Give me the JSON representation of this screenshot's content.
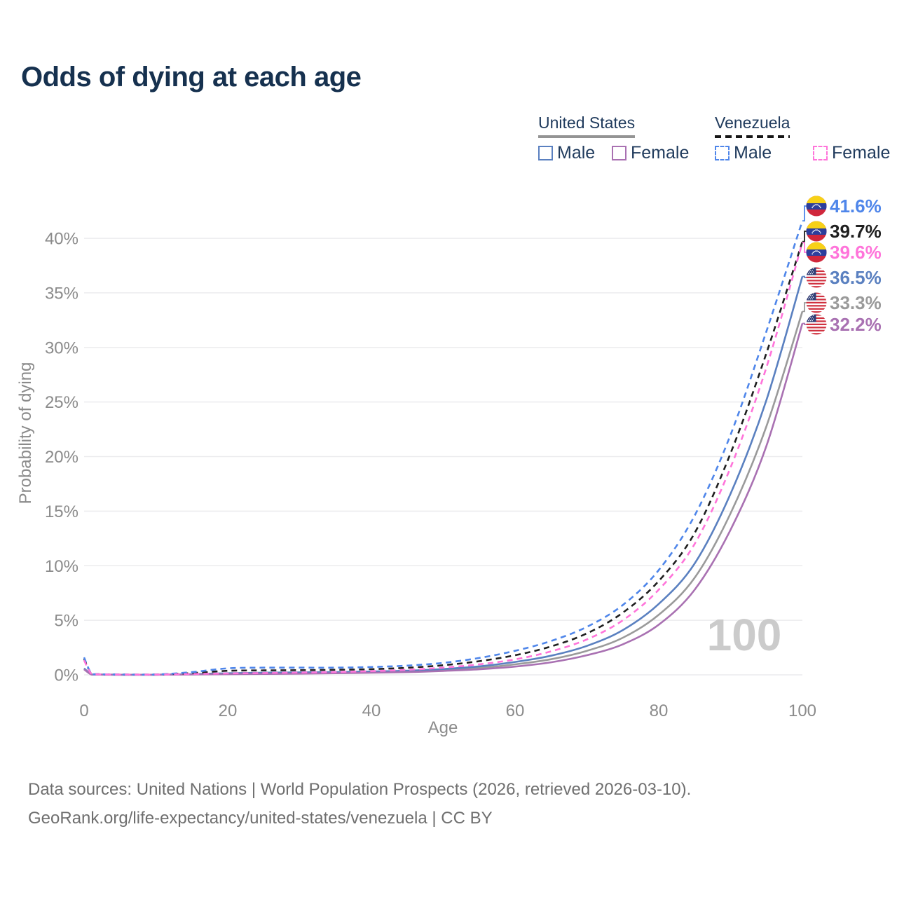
{
  "title": "Odds of dying at each age",
  "legend": {
    "groups": [
      {
        "title": "United States",
        "line_style": "solid",
        "items": [
          {
            "label": "Male",
            "color": "#5a80c0"
          },
          {
            "label": "Female",
            "color": "#a971b2"
          }
        ]
      },
      {
        "title": "Venezuela",
        "line_style": "dashed",
        "items": [
          {
            "label": "Male",
            "color": "#4f86ea"
          },
          {
            "label": "Female",
            "color": "#ff74da"
          }
        ]
      }
    ]
  },
  "chart_data": {
    "type": "line",
    "title": "Odds of dying at each age",
    "xlabel": "Age",
    "ylabel": "Probability of dying",
    "xlim": [
      0,
      100
    ],
    "ylim": [
      0,
      43
    ],
    "grid": true,
    "legend_position": "top-right",
    "watermark": "100",
    "xticks": [
      "0",
      "20",
      "40",
      "60",
      "80",
      "100"
    ],
    "yticks": [
      "0%",
      "5%",
      "10%",
      "15%",
      "20%",
      "25%",
      "30%",
      "35%",
      "40%"
    ],
    "x": [
      0,
      1,
      2,
      5,
      10,
      15,
      20,
      25,
      30,
      35,
      40,
      45,
      50,
      55,
      60,
      65,
      70,
      75,
      80,
      85,
      90,
      95,
      100
    ],
    "series": [
      {
        "name": "Venezuela Male",
        "country": "Venezuela",
        "sex": "Male",
        "color": "#4f86ea",
        "dashed": true,
        "z": 5,
        "values": [
          1.6,
          0.12,
          0.06,
          0.035,
          0.035,
          0.25,
          0.6,
          0.66,
          0.66,
          0.66,
          0.72,
          0.85,
          1.1,
          1.55,
          2.2,
          3.1,
          4.4,
          6.4,
          9.6,
          14.6,
          22.0,
          31.5,
          41.6
        ]
      },
      {
        "name": "Venezuela Total",
        "country": "Venezuela",
        "sex": "Both",
        "color": "#1f1f1f",
        "dashed": true,
        "z": 4,
        "values": [
          1.47,
          0.11,
          0.055,
          0.03,
          0.03,
          0.16,
          0.37,
          0.41,
          0.43,
          0.46,
          0.52,
          0.65,
          0.88,
          1.25,
          1.8,
          2.6,
          3.8,
          5.7,
          8.6,
          13.0,
          20.3,
          29.5,
          39.7
        ]
      },
      {
        "name": "Venezuela Female",
        "country": "Venezuela",
        "sex": "Female",
        "color": "#ff74da",
        "dashed": true,
        "z": 6,
        "values": [
          1.33,
          0.1,
          0.05,
          0.028,
          0.028,
          0.08,
          0.13,
          0.17,
          0.21,
          0.26,
          0.34,
          0.46,
          0.66,
          0.96,
          1.42,
          2.15,
          3.25,
          5.0,
          7.8,
          12.0,
          19.0,
          28.2,
          39.6
        ]
      },
      {
        "name": "United States Male",
        "country": "United States",
        "sex": "Male",
        "color": "#5a80c0",
        "dashed": false,
        "z": 2,
        "values": [
          0.6,
          0.045,
          0.025,
          0.015,
          0.015,
          0.06,
          0.15,
          0.2,
          0.23,
          0.26,
          0.3,
          0.38,
          0.53,
          0.78,
          1.18,
          1.75,
          2.65,
          4.1,
          6.5,
          10.2,
          16.6,
          25.2,
          36.5
        ]
      },
      {
        "name": "United States Total",
        "country": "United States",
        "sex": "Both",
        "color": "#9a9a9a",
        "dashed": false,
        "z": 1,
        "values": [
          0.55,
          0.04,
          0.022,
          0.013,
          0.013,
          0.045,
          0.105,
          0.14,
          0.17,
          0.2,
          0.24,
          0.31,
          0.44,
          0.64,
          0.96,
          1.43,
          2.2,
          3.4,
          5.5,
          8.9,
          14.8,
          22.8,
          33.3
        ]
      },
      {
        "name": "United States Female",
        "country": "United States",
        "sex": "Female",
        "color": "#a971b2",
        "dashed": false,
        "z": 3,
        "values": [
          0.5,
          0.035,
          0.02,
          0.012,
          0.012,
          0.03,
          0.06,
          0.085,
          0.11,
          0.145,
          0.19,
          0.25,
          0.36,
          0.51,
          0.76,
          1.15,
          1.8,
          2.8,
          4.6,
          7.8,
          13.3,
          21.0,
          32.2
        ]
      }
    ],
    "end_labels": [
      {
        "text": "41.6%",
        "value": 41.6,
        "series": 0,
        "flag": "venezuela",
        "color": "#4f86ea"
      },
      {
        "text": "39.7%",
        "value": 39.7,
        "series": 1,
        "flag": "venezuela",
        "color": "#1f1f1f"
      },
      {
        "text": "39.6%",
        "value": 39.6,
        "series": 2,
        "flag": "venezuela",
        "color": "#ff74da"
      },
      {
        "text": "36.5%",
        "value": 36.5,
        "series": 3,
        "flag": "united-states",
        "color": "#5a80c0"
      },
      {
        "text": "33.3%",
        "value": 33.3,
        "series": 4,
        "flag": "united-states",
        "color": "#9a9a9a"
      },
      {
        "text": "32.2%",
        "value": 32.2,
        "series": 5,
        "flag": "united-states",
        "color": "#a971b2"
      }
    ]
  },
  "footer": {
    "line1": "Data sources: United Nations | World Population Prospects (2026, retrieved 2026-03-10).",
    "line2": "GeoRank.org/life-expectancy/united-states/venezuela | CC BY"
  }
}
